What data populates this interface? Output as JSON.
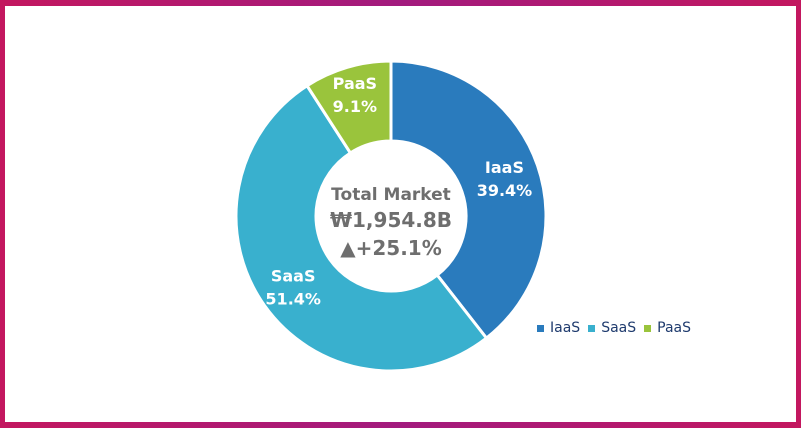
{
  "chart_data": {
    "type": "pie",
    "categories": [
      "IaaS",
      "SaaS",
      "PaaS"
    ],
    "values": [
      39.4,
      51.4,
      9.1
    ],
    "value_labels": [
      "39.4%",
      "51.4%",
      "9.1%"
    ],
    "colors": [
      "#2a7bbd",
      "#39b0ce",
      "#9ac43c"
    ],
    "center": {
      "title": "Total Market",
      "value": "₩1,954.8B",
      "change": "▲+25.1%"
    },
    "legend": {
      "placement": "bottom-right",
      "items": [
        "IaaS",
        "SaaS",
        "PaaS"
      ]
    }
  }
}
